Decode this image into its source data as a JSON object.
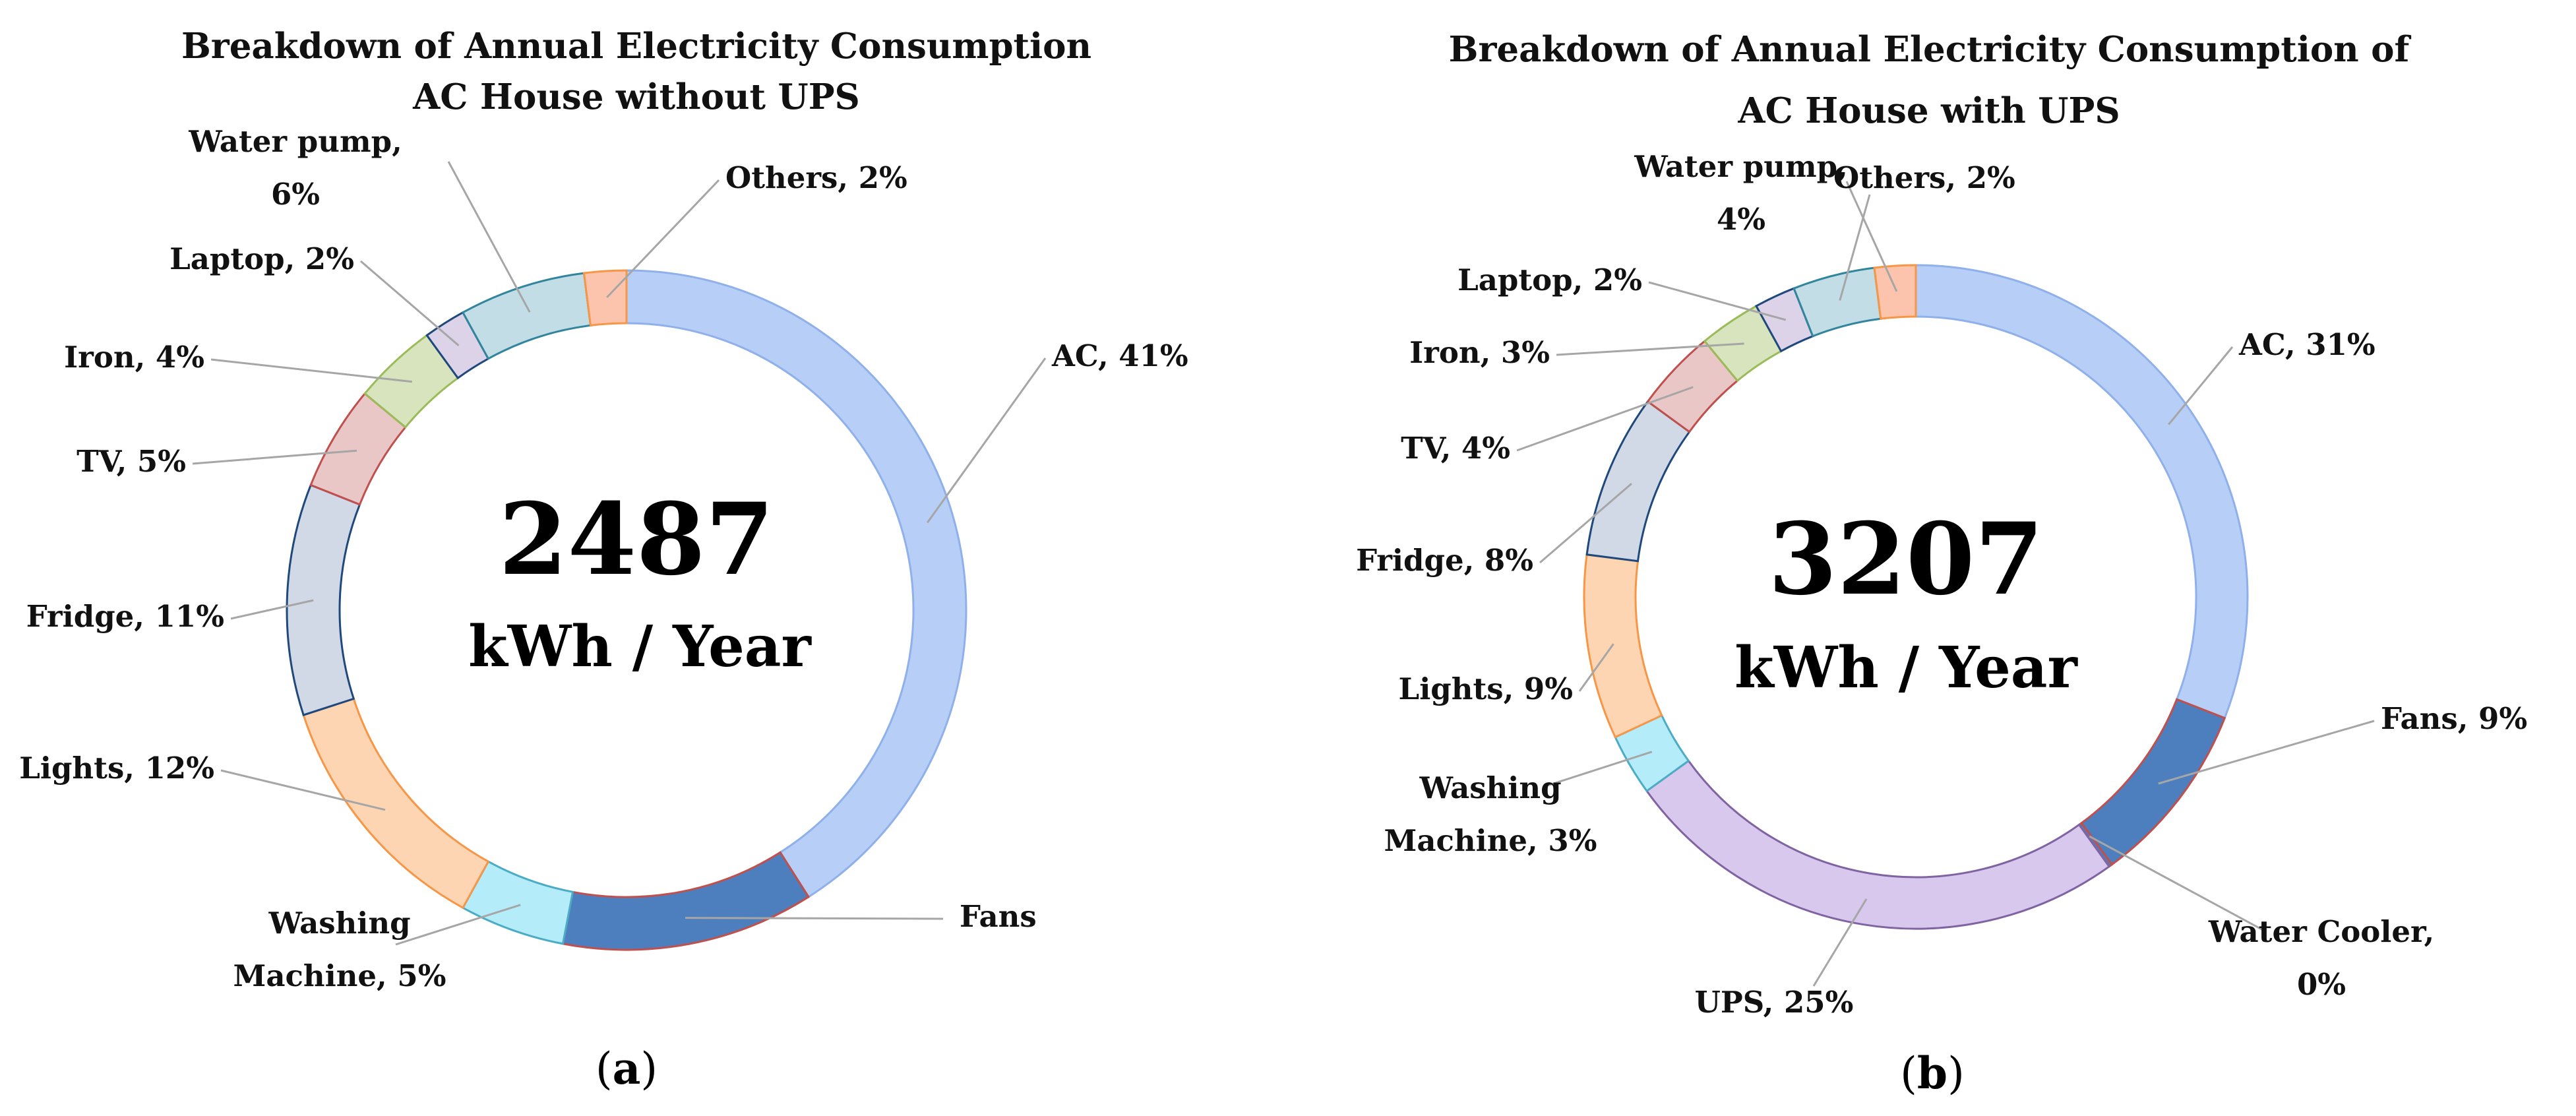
{
  "colors": {
    "AC": {
      "fill": "#b7cef7",
      "stroke": "#8fb0ea"
    },
    "Fans": {
      "fill": "#4d7fbf",
      "stroke": "#c0504d"
    },
    "Washing Machine": {
      "fill": "#b5ecfa",
      "stroke": "#4bacc6"
    },
    "Lights": {
      "fill": "#fdd5b2",
      "stroke": "#f79646"
    },
    "Fridge": {
      "fill": "#d2d9e6",
      "stroke": "#1f497d"
    },
    "TV": {
      "fill": "#e8c7c6",
      "stroke": "#c0504d"
    },
    "Iron": {
      "fill": "#d7e4bd",
      "stroke": "#9bbb59"
    },
    "Laptop": {
      "fill": "#dcd3e8",
      "stroke": "#1f497d"
    },
    "Water pump": {
      "fill": "#c3dde6",
      "stroke": "#31859c"
    },
    "Others": {
      "fill": "#fcc4ac",
      "stroke": "#f79646"
    },
    "UPS": {
      "fill": "#d8c8ee",
      "stroke": "#8064a2"
    },
    "Water Cooler": {
      "fill": "#4d7fbf",
      "stroke": "#c0504d"
    }
  },
  "chart_data": [
    {
      "type": "pie",
      "variant": "donut",
      "title": [
        "Breakdown of Annual Electricity Consumption",
        "AC House without UPS"
      ],
      "center_value": "2487",
      "center_unit": "kWh / Year",
      "panel_label": "(a)",
      "panel_letter": "a",
      "slices": [
        {
          "name": "AC",
          "value": 41,
          "label_lines": [
            "AC, 41%"
          ]
        },
        {
          "name": "Fans",
          "value": 12,
          "label_lines": [
            "Fans"
          ]
        },
        {
          "name": "Washing Machine",
          "value": 5,
          "label_lines": [
            "Washing",
            "Machine, 5%"
          ]
        },
        {
          "name": "Lights",
          "value": 12,
          "label_lines": [
            "Lights, 12%"
          ]
        },
        {
          "name": "Fridge",
          "value": 11,
          "label_lines": [
            "Fridge, 11%"
          ]
        },
        {
          "name": "TV",
          "value": 5,
          "label_lines": [
            "TV, 5%"
          ]
        },
        {
          "name": "Iron",
          "value": 4,
          "label_lines": [
            "Iron, 4%"
          ]
        },
        {
          "name": "Laptop",
          "value": 2,
          "label_lines": [
            "Laptop, 2%"
          ]
        },
        {
          "name": "Water pump",
          "value": 6,
          "label_lines": [
            "Water pump,",
            "6%"
          ]
        },
        {
          "name": "Others",
          "value": 2,
          "label_lines": [
            "Others, 2%"
          ]
        }
      ]
    },
    {
      "type": "pie",
      "variant": "donut",
      "title": [
        "Breakdown of Annual Electricity Consumption of",
        "AC House with UPS"
      ],
      "center_value": "3207",
      "center_unit": "kWh / Year",
      "panel_label": "(b)",
      "panel_letter": "b",
      "slices": [
        {
          "name": "AC",
          "value": 31,
          "label_lines": [
            "AC, 31%"
          ]
        },
        {
          "name": "Fans",
          "value": 9,
          "label_lines": [
            "Fans, 9%"
          ]
        },
        {
          "name": "Water Cooler",
          "value": 0,
          "label_lines": [
            "Water Cooler,",
            "0%"
          ]
        },
        {
          "name": "UPS",
          "value": 25,
          "label_lines": [
            "UPS, 25%"
          ]
        },
        {
          "name": "Washing Machine",
          "value": 3,
          "label_lines": [
            "Washing",
            "Machine, 3%"
          ]
        },
        {
          "name": "Lights",
          "value": 9,
          "label_lines": [
            "Lights, 9%"
          ]
        },
        {
          "name": "Fridge",
          "value": 8,
          "label_lines": [
            "Fridge, 8%"
          ]
        },
        {
          "name": "TV",
          "value": 4,
          "label_lines": [
            "TV, 4%"
          ]
        },
        {
          "name": "Iron",
          "value": 3,
          "label_lines": [
            "Iron, 3%"
          ]
        },
        {
          "name": "Laptop",
          "value": 2,
          "label_lines": [
            "Laptop, 2%"
          ]
        },
        {
          "name": "Water pump",
          "value": 4,
          "label_lines": [
            "Water pump,",
            "4%"
          ]
        },
        {
          "name": "Others",
          "value": 2,
          "label_lines": [
            "Others, 2%"
          ]
        }
      ]
    }
  ]
}
